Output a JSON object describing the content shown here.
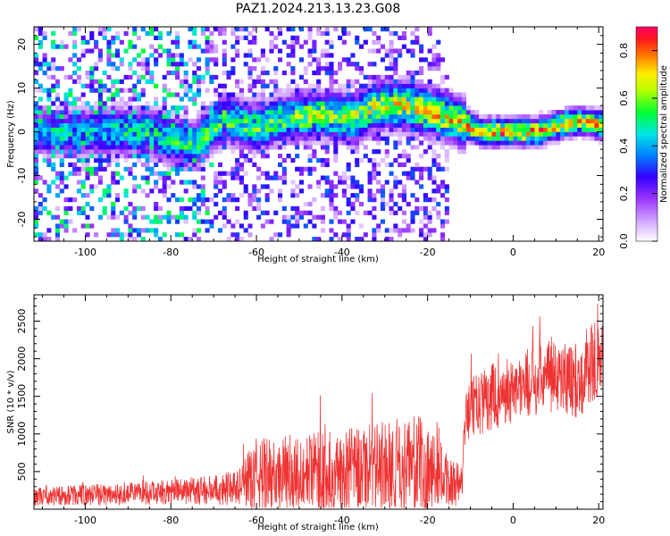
{
  "figure": {
    "title": "PAZ1.2024.213.13.23.G08"
  },
  "chart_data": [
    {
      "type": "heatmap",
      "title": "PAZ1.2024.213.13.23.G08",
      "xlabel": "Height of straight line (km)",
      "ylabel": "Frequency (Hz)",
      "xlim": [
        -112,
        21
      ],
      "ylim": [
        -25,
        24
      ],
      "xticks": [
        -100,
        -80,
        -60,
        -40,
        -20,
        0,
        20
      ],
      "yticks": [
        -20,
        -10,
        0,
        10,
        20
      ],
      "grid": false,
      "colorbar": {
        "label": "Normalized spectral amplitude",
        "range": [
          0.0,
          0.9
        ],
        "ticks": [
          0.0,
          0.2,
          0.4,
          0.6,
          0.8
        ],
        "colormap": [
          "#ffffff",
          "#d9b3ff",
          "#9933ff",
          "#3300ff",
          "#0080ff",
          "#00e6e6",
          "#00ff33",
          "#b3ff00",
          "#ffee00",
          "#ff8000",
          "#ff1a1a",
          "#ff0066"
        ]
      },
      "ridge": {
        "description_points": [
          {
            "x": -112,
            "y": 0
          },
          {
            "x": -86,
            "y": 0
          },
          {
            "x": -80,
            "y": -2
          },
          {
            "x": -75,
            "y": -3
          },
          {
            "x": -68,
            "y": 3
          },
          {
            "x": -60,
            "y": 1
          },
          {
            "x": -55,
            "y": 3
          },
          {
            "x": -45,
            "y": 4
          },
          {
            "x": -38,
            "y": 3
          },
          {
            "x": -32,
            "y": 6
          },
          {
            "x": -25,
            "y": 6
          },
          {
            "x": -18,
            "y": 4
          },
          {
            "x": -12,
            "y": 2
          },
          {
            "x": -8,
            "y": 0
          },
          {
            "x": 0,
            "y": 0
          },
          {
            "x": 5,
            "y": 0
          },
          {
            "x": 12,
            "y": 2
          },
          {
            "x": 15,
            "y": 2.5
          },
          {
            "x": 21,
            "y": 1.5
          }
        ]
      }
    },
    {
      "type": "line",
      "xlabel": "Height of straight line (km)",
      "ylabel": "SNR (10 * v/v)",
      "xlim": [
        -112,
        21
      ],
      "ylim": [
        0,
        2850
      ],
      "xticks": [
        -100,
        -80,
        -60,
        -40,
        -20,
        0,
        20
      ],
      "yticks": [
        500,
        1000,
        1500,
        2000,
        2500
      ],
      "grid": false,
      "color": "#ee3333",
      "series": [
        {
          "x": [
            -112,
            -100,
            -90,
            -80,
            -70,
            -64,
            -60,
            -50,
            -40,
            -30,
            -22,
            -18,
            -12,
            -11,
            -5,
            0,
            5,
            10,
            15,
            18,
            21
          ],
          "y_baseline": [
            170,
            190,
            200,
            230,
            260,
            290,
            450,
            480,
            500,
            580,
            600,
            480,
            300,
            1300,
            1500,
            1600,
            1700,
            1800,
            1700,
            1950,
            2000
          ],
          "y_spread": [
            120,
            140,
            150,
            170,
            200,
            250,
            500,
            520,
            550,
            600,
            650,
            500,
            250,
            400,
            450,
            450,
            450,
            500,
            500,
            600,
            450
          ]
        }
      ]
    }
  ]
}
